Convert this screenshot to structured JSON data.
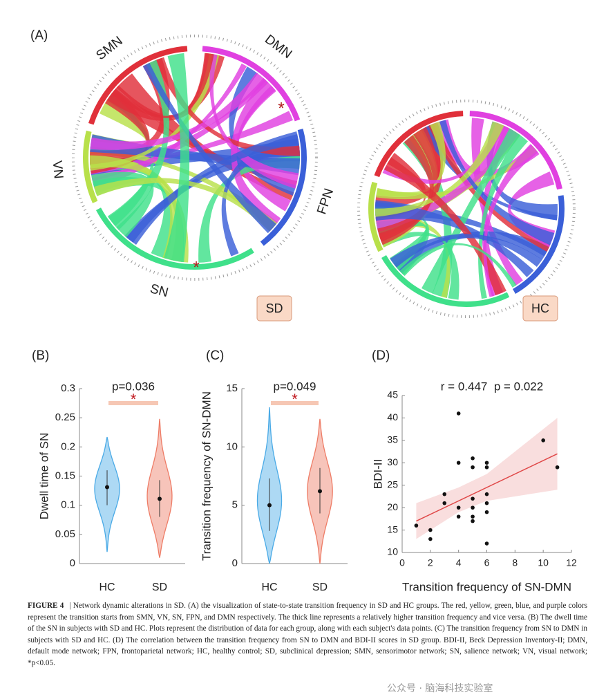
{
  "chart_data": [
    {
      "type": "chord",
      "panel_label": "(A)",
      "groups": [
        "SMN",
        "DMN",
        "FPN",
        "SN",
        "VN"
      ],
      "colors": [
        "#e0303a",
        "#e040e0",
        "#3a5fd8",
        "#3fe08a",
        "#b8e04a"
      ],
      "diagrams": [
        "SD",
        "HC"
      ],
      "annotations": [
        "*",
        "*"
      ]
    },
    {
      "type": "violin",
      "panel_label": "(B)",
      "ylabel": "Dwell time of SN",
      "annotation": "p=0.036",
      "significance": "*",
      "categories": [
        "HC",
        "SD"
      ],
      "colors": [
        "#4aaae6",
        "#ee7c66"
      ],
      "medians": [
        0.131,
        0.111
      ],
      "q1": [
        0.1,
        0.08
      ],
      "q3": [
        0.16,
        0.143
      ],
      "min": [
        0.02,
        0.01
      ],
      "max": [
        0.217,
        0.248
      ],
      "ylim": [
        0,
        0.3
      ],
      "yticks": [
        0,
        0.05,
        0.1,
        0.15,
        0.2,
        0.25,
        0.3
      ]
    },
    {
      "type": "violin",
      "panel_label": "(C)",
      "ylabel": "Transition frequency of SN-DMN",
      "annotation": "p=0.049",
      "significance": "*",
      "categories": [
        "HC",
        "SD"
      ],
      "colors": [
        "#4aaae6",
        "#ee7c66"
      ],
      "medians": [
        5.0,
        6.2
      ],
      "q1": [
        2.8,
        4.3
      ],
      "q3": [
        7.3,
        8.2
      ],
      "min": [
        0,
        0
      ],
      "max": [
        13.4,
        12.4
      ],
      "ylim": [
        0,
        15
      ],
      "yticks": [
        0,
        5,
        10,
        15
      ]
    },
    {
      "type": "scatter",
      "panel_label": "(D)",
      "annotation": "r = 0.447  p = 0.022",
      "xlabel": "Transition frequency of SN-DMN",
      "ylabel": "BDI-II",
      "color": "#111111",
      "fit_color": "#e04848",
      "x": [
        1,
        2,
        2,
        3,
        3,
        4,
        4,
        4,
        4,
        5,
        5,
        5,
        5,
        5,
        5,
        6,
        6,
        6,
        6,
        6,
        6,
        10,
        11
      ],
      "values": [
        16,
        15,
        13,
        23,
        21,
        41,
        30,
        20,
        18,
        31,
        29,
        22,
        20,
        18,
        17,
        30,
        29,
        23,
        21,
        19,
        12,
        35,
        29
      ],
      "fit_x": [
        1,
        11
      ],
      "fit_y": [
        17,
        32
      ],
      "ci_x": [
        1,
        4,
        6,
        11
      ],
      "ci_lower": [
        13,
        19,
        21.5,
        24
      ],
      "ci_upper": [
        21,
        24.5,
        27.5,
        40
      ],
      "xlim": [
        0,
        12
      ],
      "xticks": [
        0,
        2,
        4,
        6,
        8,
        10,
        12
      ],
      "ylim": [
        10,
        45
      ],
      "yticks": [
        10,
        15,
        20,
        25,
        30,
        35,
        40,
        45
      ]
    }
  ],
  "caption": {
    "label": "FIGURE 4",
    "separator": "|",
    "text": "Network dynamic alterations in SD. (A) the visualization of state-to-state transition frequency in SD and HC groups. The red, yellow, green, blue, and purple colors represent the transition starts from SMN, VN, SN, FPN, and DMN respectively. The thick line represents a relatively higher transition frequency and vice versa. (B) The dwell time of the SN in subjects with SD and HC. Plots represent the distribution of data for each group, along with each subject's data points. (C) The transition frequency from SN to DMN in subjects with SD and HC. (D) The correlation between the transition frequency from SN to DMN and BDI-II scores in SD group. BDI-II, Beck Depression Inventory-II; DMN, default mode network; FPN, frontoparietal network; HC, healthy control; SD, subclinical depression; SMN, sensorimotor network; SN, salience network; VN, visual network; *p<0.05."
  },
  "watermark": "公众号 · 脑海科技实验室"
}
